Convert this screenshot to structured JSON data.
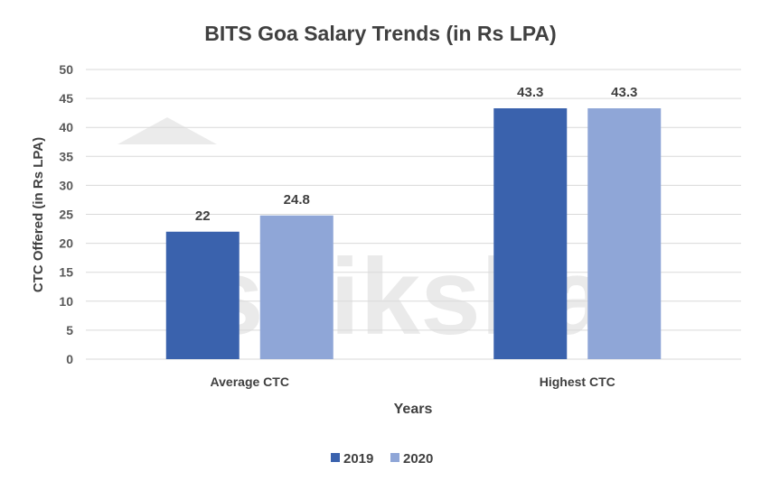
{
  "watermark": "shiksha",
  "chart_data": {
    "type": "bar",
    "title": "BITS Goa Salary Trends (in Rs LPA)",
    "xlabel": "Years",
    "ylabel": "CTC Offered (in Rs LPA)",
    "categories": [
      "Average CTC",
      "Highest CTC"
    ],
    "series": [
      {
        "name": "2019",
        "values": [
          22,
          43.3
        ],
        "labels": [
          "22",
          "43.3"
        ],
        "color": "#3a62ad"
      },
      {
        "name": "2020",
        "values": [
          24.8,
          43.3
        ],
        "labels": [
          "24.8",
          "43.3"
        ],
        "color": "#8fa6d7"
      }
    ],
    "ylim": [
      0,
      50
    ],
    "yticks": [
      "0",
      "5",
      "10",
      "15",
      "20",
      "25",
      "30",
      "35",
      "40",
      "45",
      "50"
    ],
    "grid": true,
    "legend": "bottom"
  }
}
